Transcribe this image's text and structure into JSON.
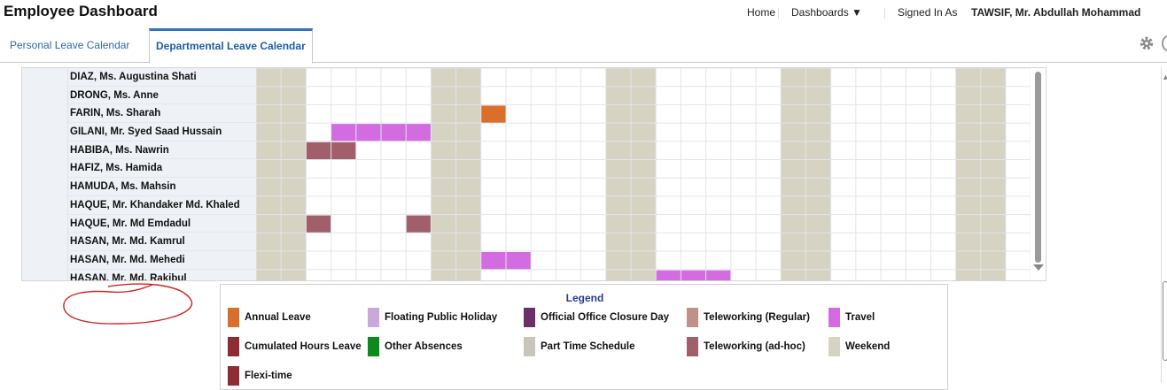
{
  "header": {
    "title": "Employee Dashboard",
    "home": "Home",
    "dashboards": "Dashboards ▼",
    "signed_in_label": "Signed In As",
    "user": "TAWSIF, Mr. Abdullah Mohammad"
  },
  "tabs": [
    {
      "label": "Personal Leave Calendar",
      "active": false
    },
    {
      "label": "Departmental Leave Calendar",
      "active": true
    }
  ],
  "employees": [
    "DIAZ, Ms. Augustina Shati",
    "DRONG, Ms. Anne",
    "FARIN, Ms. Sharah",
    "GILANI, Mr. Syed Saad Hussain",
    "HABIBA, Ms. Nawrin",
    "HAFIZ, Ms. Hamida",
    "HAMUDA, Ms. Mahsin",
    "HAQUE, Mr. Khandaker Md. Khaled",
    "HAQUE, Mr. Md Emdadul",
    "HASAN, Mr. Md. Kamrul",
    "HASAN, Mr. Md. Mehedi",
    "HASAN, Mr. Md. Rakibul"
  ],
  "calendar": {
    "day_count": 31,
    "weekend_days": [
      0,
      1,
      7,
      8,
      14,
      15,
      21,
      22,
      28,
      29
    ],
    "colors": {
      "weekend": "#d6d3c3",
      "annual_leave": "#d96f2b",
      "travel": "#d36ce0",
      "teleworking_adhoc": "#a05f6a",
      "grid_line": "#e2e5ea"
    },
    "entries": [
      {
        "row": 2,
        "start": 9,
        "end": 9,
        "type": "annual_leave"
      },
      {
        "row": 3,
        "start": 3,
        "end": 6,
        "type": "travel"
      },
      {
        "row": 4,
        "start": 2,
        "end": 3,
        "type": "teleworking_adhoc"
      },
      {
        "row": 8,
        "start": 2,
        "end": 2,
        "type": "teleworking_adhoc"
      },
      {
        "row": 8,
        "start": 6,
        "end": 6,
        "type": "teleworking_adhoc"
      },
      {
        "row": 10,
        "start": 9,
        "end": 10,
        "type": "travel"
      },
      {
        "row": 11,
        "start": 16,
        "end": 18,
        "type": "travel"
      }
    ]
  },
  "legend": {
    "title": "Legend",
    "items": [
      {
        "label": "Annual Leave",
        "color": "#d96f2b"
      },
      {
        "label": "Floating Public Holiday",
        "color": "#c9a9d8"
      },
      {
        "label": "Official Office Closure Day",
        "color": "#6b2f6b"
      },
      {
        "label": "Teleworking (Regular)",
        "color": "#c19089"
      },
      {
        "label": "Travel",
        "color": "#d36ce0"
      },
      {
        "label": "Cumulated Hours Leave",
        "color": "#8f2b33"
      },
      {
        "label": "Other Absences",
        "color": "#0d8a1c"
      },
      {
        "label": "Part Time Schedule",
        "color": "#c8c6bb"
      },
      {
        "label": "Teleworking (ad-hoc)",
        "color": "#a05f6a"
      },
      {
        "label": "Weekend",
        "color": "#d6d3c3"
      },
      {
        "label": "Flexi-time",
        "color": "#8f2b33"
      }
    ]
  }
}
